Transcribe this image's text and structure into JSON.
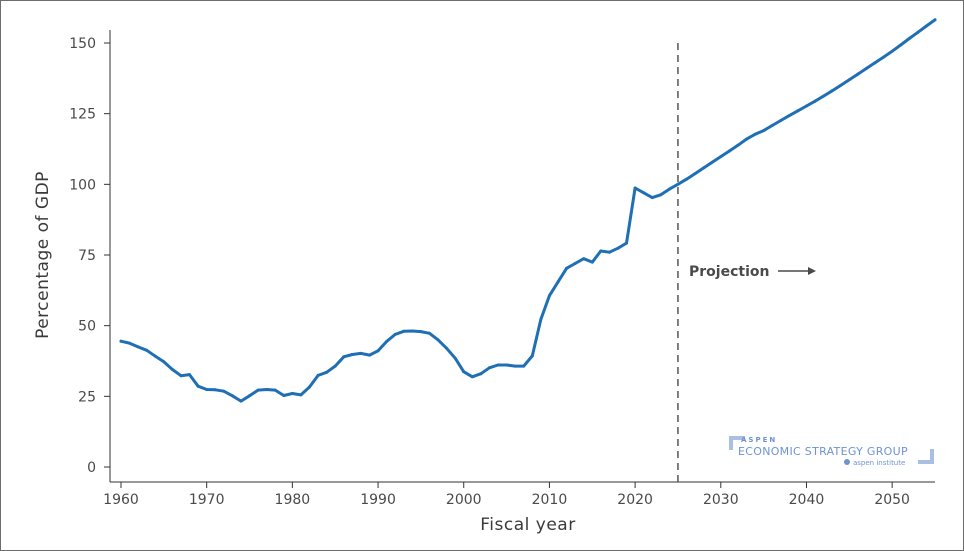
{
  "chart_data": {
    "type": "line",
    "xlabel": "Fiscal year",
    "ylabel": "Percentage of GDP",
    "xlim": [
      1960,
      2055
    ],
    "ylim": [
      0,
      150
    ],
    "x_ticks": [
      1960,
      1970,
      1980,
      1990,
      2000,
      2010,
      2020,
      2030,
      2040,
      2050
    ],
    "y_ticks": [
      0,
      25,
      50,
      75,
      100,
      125,
      150
    ],
    "grid": false,
    "projection_start": 2025,
    "annotation": "Projection",
    "colors": {
      "line": "#1f6fb5",
      "divider": "#555555",
      "axis": "#333333",
      "logo": "#6f93cf"
    },
    "series": [
      {
        "points": [
          [
            1960,
            44.5
          ],
          [
            1961,
            43.8
          ],
          [
            1962,
            42.5
          ],
          [
            1963,
            41.3
          ],
          [
            1964,
            39.2
          ],
          [
            1965,
            37.2
          ],
          [
            1966,
            34.5
          ],
          [
            1967,
            32.3
          ],
          [
            1968,
            32.7
          ],
          [
            1969,
            28.6
          ],
          [
            1970,
            27.4
          ],
          [
            1971,
            27.3
          ],
          [
            1972,
            26.8
          ],
          [
            1973,
            25.2
          ],
          [
            1974,
            23.3
          ],
          [
            1975,
            25.2
          ],
          [
            1976,
            27.2
          ],
          [
            1977,
            27.4
          ],
          [
            1978,
            27.2
          ],
          [
            1979,
            25.3
          ],
          [
            1980,
            26.0
          ],
          [
            1981,
            25.5
          ],
          [
            1982,
            28.3
          ],
          [
            1983,
            32.4
          ],
          [
            1984,
            33.5
          ],
          [
            1985,
            35.7
          ],
          [
            1986,
            39.0
          ],
          [
            1987,
            39.8
          ],
          [
            1988,
            40.2
          ],
          [
            1989,
            39.6
          ],
          [
            1990,
            41.1
          ],
          [
            1991,
            44.4
          ],
          [
            1992,
            46.9
          ],
          [
            1993,
            48.0
          ],
          [
            1994,
            48.1
          ],
          [
            1995,
            47.9
          ],
          [
            1996,
            47.3
          ],
          [
            1997,
            45.0
          ],
          [
            1998,
            42.0
          ],
          [
            1999,
            38.5
          ],
          [
            2000,
            33.7
          ],
          [
            2001,
            31.9
          ],
          [
            2002,
            33.0
          ],
          [
            2003,
            35.1
          ],
          [
            2004,
            36.1
          ],
          [
            2005,
            36.1
          ],
          [
            2006,
            35.7
          ],
          [
            2007,
            35.7
          ],
          [
            2008,
            39.3
          ],
          [
            2009,
            52.3
          ],
          [
            2010,
            60.6
          ],
          [
            2011,
            65.5
          ],
          [
            2012,
            70.3
          ],
          [
            2013,
            72.0
          ],
          [
            2014,
            73.7
          ],
          [
            2015,
            72.5
          ],
          [
            2016,
            76.4
          ],
          [
            2017,
            76.0
          ],
          [
            2018,
            77.4
          ],
          [
            2019,
            79.2
          ],
          [
            2020,
            98.7
          ],
          [
            2021,
            97.0
          ],
          [
            2022,
            95.3
          ],
          [
            2023,
            96.3
          ],
          [
            2024,
            98.3
          ],
          [
            2025,
            100.0
          ],
          [
            2026,
            101.8
          ],
          [
            2027,
            103.8
          ],
          [
            2028,
            105.8
          ],
          [
            2029,
            107.8
          ],
          [
            2030,
            109.8
          ],
          [
            2031,
            111.8
          ],
          [
            2032,
            113.8
          ],
          [
            2033,
            116.0
          ],
          [
            2034,
            117.7
          ],
          [
            2035,
            119.0
          ],
          [
            2036,
            120.8
          ],
          [
            2037,
            122.6
          ],
          [
            2038,
            124.3
          ],
          [
            2039,
            126.0
          ],
          [
            2040,
            127.7
          ],
          [
            2041,
            129.4
          ],
          [
            2042,
            131.2
          ],
          [
            2043,
            133.1
          ],
          [
            2044,
            135.0
          ],
          [
            2045,
            137.0
          ],
          [
            2046,
            139.0
          ],
          [
            2047,
            141.0
          ],
          [
            2048,
            143.0
          ],
          [
            2049,
            145.0
          ],
          [
            2050,
            147.1
          ],
          [
            2051,
            149.3
          ],
          [
            2052,
            151.6
          ],
          [
            2053,
            153.8
          ],
          [
            2054,
            156.0
          ],
          [
            2055,
            158.2
          ]
        ]
      }
    ]
  },
  "logo": {
    "top": "ASPEN",
    "main": "ECONOMIC STRATEGY GROUP",
    "sub": "aspen institute"
  }
}
